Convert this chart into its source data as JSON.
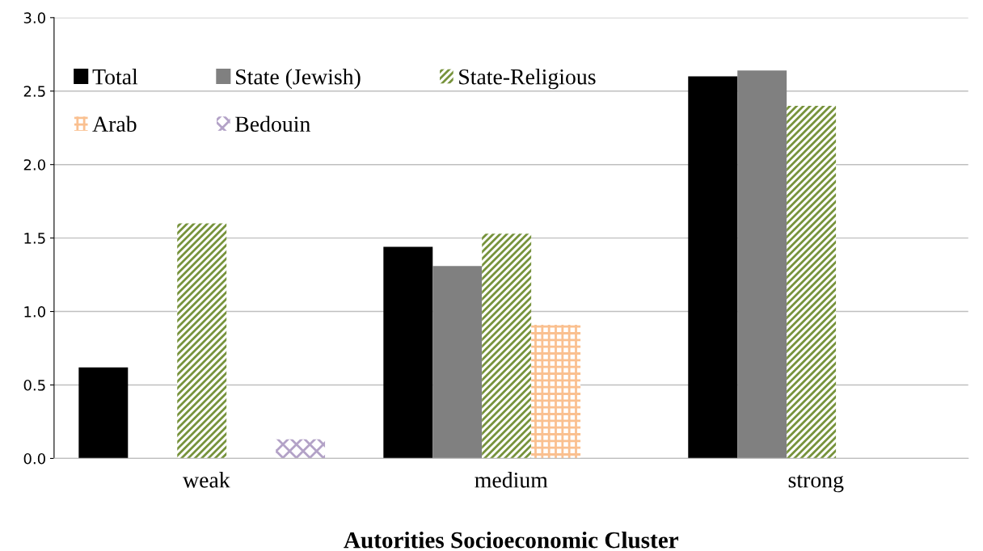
{
  "chart_data": {
    "type": "bar",
    "xlabel": "Autorities Socioeconomic Cluster",
    "categories": [
      "weak",
      "medium",
      "strong"
    ],
    "series": [
      {
        "name": "Total",
        "color": "#000000",
        "values": [
          0.62,
          1.44,
          2.6
        ]
      },
      {
        "name": "State (Jewish)",
        "color": "#808080",
        "values": [
          null,
          1.31,
          2.64
        ]
      },
      {
        "name": "State-Religious",
        "color": "#77933c",
        "values": [
          1.6,
          1.53,
          2.4
        ]
      },
      {
        "name": "Arab",
        "color": "#fac090",
        "values": [
          null,
          0.91,
          null
        ]
      },
      {
        "name": "Bedouin",
        "color": "#b3a2c7",
        "values": [
          0.13,
          null,
          null
        ]
      }
    ],
    "ylim": [
      0,
      3
    ],
    "yticks": [
      {
        "value": 0,
        "label": "0.0"
      },
      {
        "value": 0.5,
        "label": "0.5"
      },
      {
        "value": 1,
        "label": "1.0"
      },
      {
        "value": 1.5,
        "label": "1.5"
      },
      {
        "value": 2,
        "label": "2.0"
      },
      {
        "value": 2.5,
        "label": "2.5"
      },
      {
        "value": 3,
        "label": "3.0"
      }
    ],
    "grid": "y",
    "legend": "top left"
  }
}
